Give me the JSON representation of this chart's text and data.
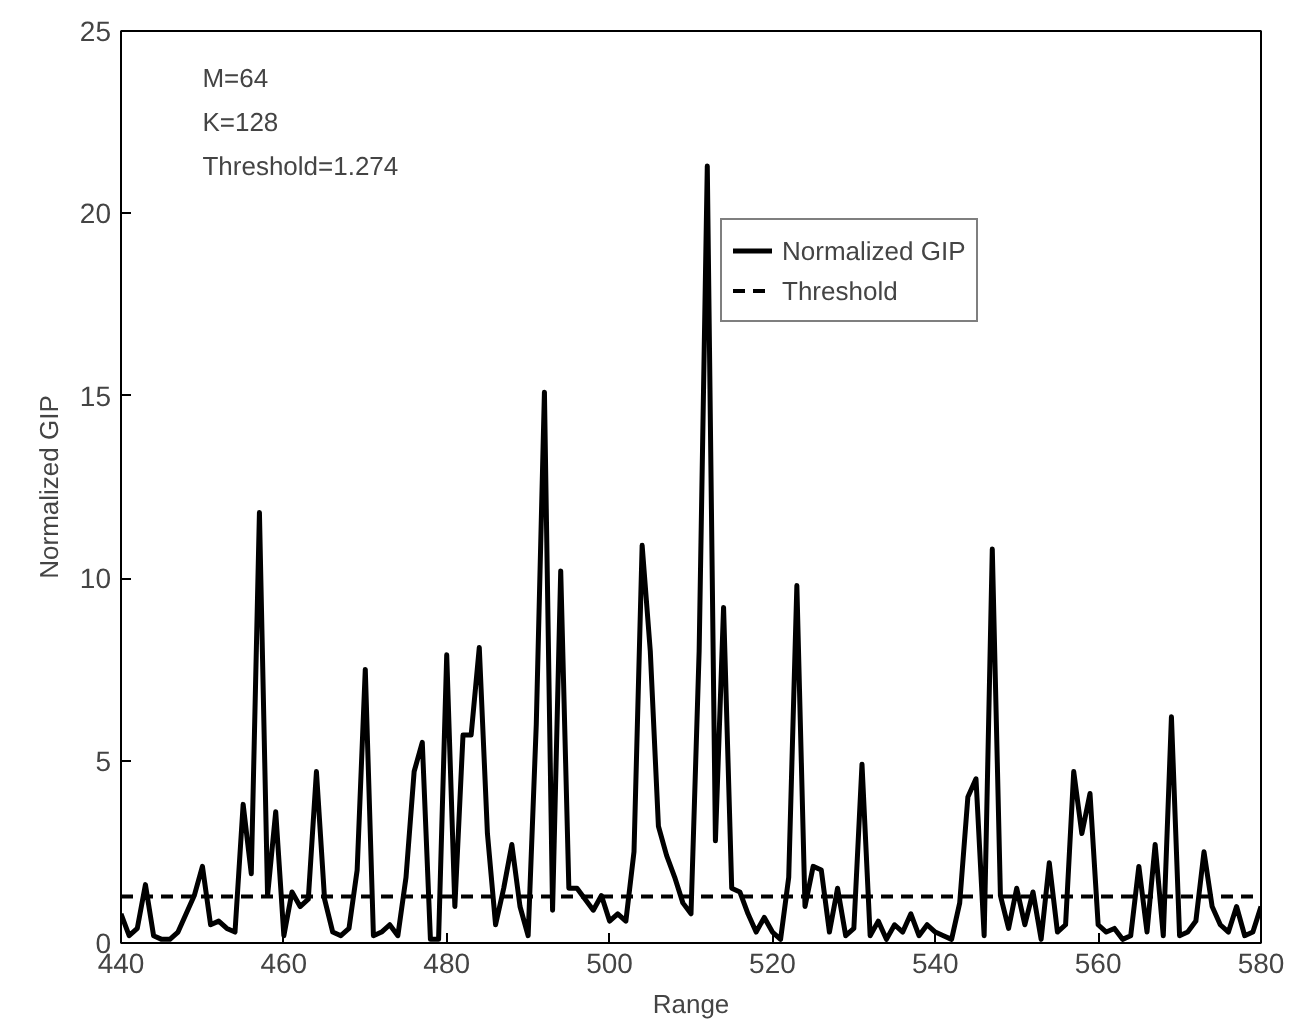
{
  "chart_data": {
    "type": "line",
    "xlabel": "Range",
    "ylabel": "Normalized GIP",
    "annotations": [
      "M=64",
      "K=128",
      "Threshold=1.274"
    ],
    "x": [
      440,
      441,
      442,
      443,
      444,
      445,
      446,
      447,
      448,
      449,
      450,
      451,
      452,
      453,
      454,
      455,
      456,
      457,
      458,
      459,
      460,
      461,
      462,
      463,
      464,
      465,
      466,
      467,
      468,
      469,
      470,
      471,
      472,
      473,
      474,
      475,
      476,
      477,
      478,
      479,
      480,
      481,
      482,
      483,
      484,
      485,
      486,
      487,
      488,
      489,
      490,
      491,
      492,
      493,
      494,
      495,
      496,
      497,
      498,
      499,
      500,
      501,
      502,
      503,
      504,
      505,
      506,
      507,
      508,
      509,
      510,
      511,
      512,
      513,
      514,
      515,
      516,
      517,
      518,
      519,
      520,
      521,
      522,
      523,
      524,
      525,
      526,
      527,
      528,
      529,
      530,
      531,
      532,
      533,
      534,
      535,
      536,
      537,
      538,
      539,
      540,
      541,
      542,
      543,
      544,
      545,
      546,
      547,
      548,
      549,
      550,
      551,
      552,
      553,
      554,
      555,
      556,
      557,
      558,
      559,
      560,
      561,
      562,
      563,
      564,
      565,
      566,
      567,
      568,
      569,
      570,
      571,
      572,
      573,
      574,
      575,
      576,
      577,
      578,
      579,
      580
    ],
    "series": [
      {
        "name": "Normalized GIP",
        "color": "#000000",
        "line_style": "solid",
        "values": [
          0.8,
          0.2,
          0.4,
          1.6,
          0.2,
          0.1,
          0.1,
          0.3,
          0.8,
          1.3,
          2.1,
          0.5,
          0.6,
          0.4,
          0.3,
          3.8,
          1.9,
          11.8,
          1.3,
          3.6,
          0.2,
          1.4,
          1.0,
          1.2,
          4.7,
          1.2,
          0.3,
          0.2,
          0.4,
          2.0,
          7.5,
          0.2,
          0.3,
          0.5,
          0.2,
          1.8,
          4.7,
          5.5,
          0.1,
          0.1,
          7.9,
          1.0,
          5.7,
          5.7,
          8.1,
          3.0,
          0.5,
          1.5,
          2.7,
          1.0,
          0.2,
          6.0,
          15.1,
          0.9,
          10.2,
          1.5,
          1.5,
          1.2,
          0.9,
          1.3,
          0.6,
          0.8,
          0.6,
          2.5,
          10.9,
          8.0,
          3.2,
          2.4,
          1.8,
          1.1,
          0.8,
          8.0,
          21.3,
          2.8,
          9.2,
          1.5,
          1.4,
          0.8,
          0.3,
          0.7,
          0.3,
          0.1,
          1.8,
          9.8,
          1.0,
          2.1,
          2.0,
          0.3,
          1.5,
          0.2,
          0.4,
          4.9,
          0.2,
          0.6,
          0.1,
          0.5,
          0.3,
          0.8,
          0.2,
          0.5,
          0.3,
          0.2,
          0.1,
          1.1,
          4.0,
          4.5,
          0.2,
          10.8,
          1.3,
          0.4,
          1.5,
          0.5,
          1.4,
          0.1,
          2.2,
          0.3,
          0.5,
          4.7,
          3.0,
          4.1,
          0.5,
          0.3,
          0.4,
          0.1,
          0.2,
          2.1,
          0.3,
          2.7,
          0.2,
          6.2,
          0.2,
          0.3,
          0.6,
          2.5,
          1.0,
          0.5,
          0.3,
          1.0,
          0.2,
          0.3,
          1.0
        ]
      },
      {
        "name": "Threshold",
        "color": "#000000",
        "line_style": "dashed",
        "x": [
          440,
          580
        ],
        "values": [
          1.274,
          1.274
        ]
      }
    ],
    "xlim": [
      440,
      580
    ],
    "ylim": [
      0,
      25
    ],
    "xticks": [
      440,
      460,
      480,
      500,
      520,
      540,
      560,
      580
    ],
    "yticks": [
      0,
      5,
      10,
      15,
      20,
      25
    ],
    "grid": false,
    "legend": "top right"
  }
}
